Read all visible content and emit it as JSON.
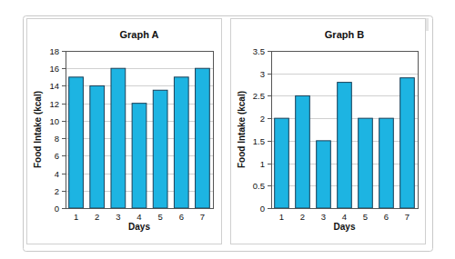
{
  "chart_data": [
    {
      "type": "bar",
      "title": "Graph A",
      "x_label": "Days",
      "y_label": "Food Intake (kcal)",
      "categories": [
        "1",
        "2",
        "3",
        "4",
        "5",
        "6",
        "7"
      ],
      "values": [
        15,
        14,
        16,
        12,
        13.5,
        15,
        16
      ],
      "color": "#1db4e2",
      "ylim": [
        0,
        18
      ],
      "yticks": [
        0,
        2,
        4,
        6,
        8,
        10,
        12,
        14,
        16,
        18
      ],
      "grid": true
    },
    {
      "type": "bar",
      "title": "Graph B",
      "x_label": "Days",
      "y_label": "Food Intake (kcal)",
      "categories": [
        "1",
        "2",
        "3",
        "4",
        "5",
        "6",
        "7"
      ],
      "values": [
        2,
        2.5,
        1.5,
        2.8,
        2,
        2,
        2.9
      ],
      "color": "#1db4e2",
      "ylim": [
        0,
        3.5
      ],
      "yticks": [
        0,
        0.5,
        1,
        1.5,
        2,
        2.5,
        3,
        3.5
      ],
      "grid": true
    }
  ]
}
